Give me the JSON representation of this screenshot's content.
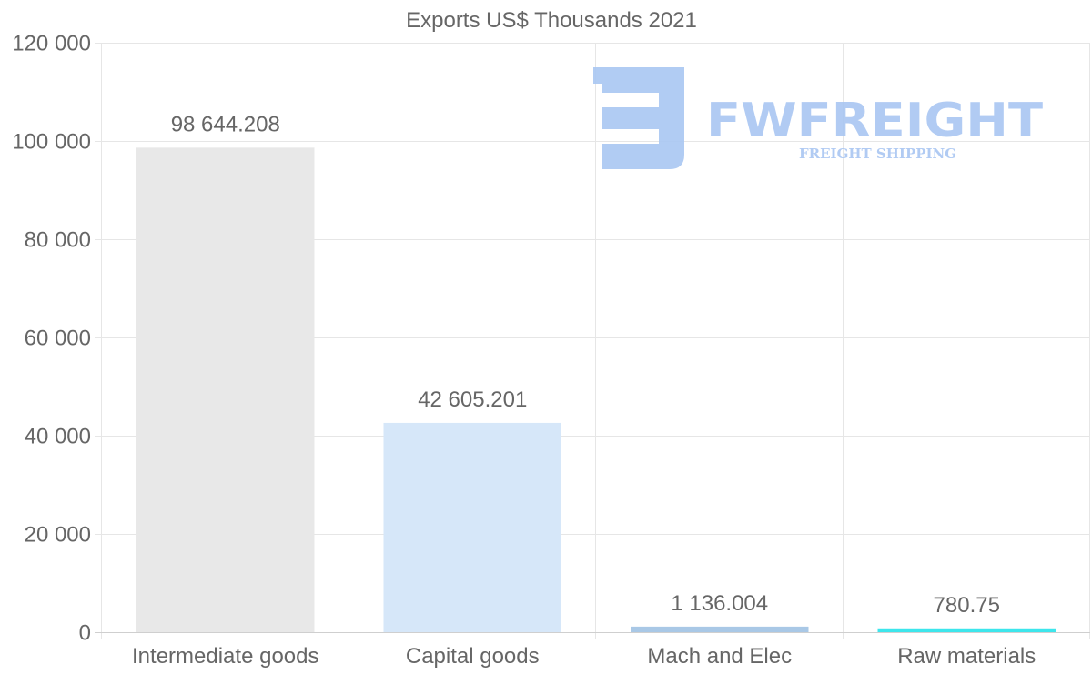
{
  "watermark": {
    "brand": "FWFREIGHT",
    "tagline": "FREIGHT SHIPPING"
  },
  "chart_data": {
    "type": "bar",
    "title": "Exports US$ Thousands 2021",
    "categories": [
      "Intermediate goods",
      "Capital goods",
      "Mach and Elec",
      "Raw materials"
    ],
    "values": [
      98644.208,
      42605.201,
      1136.004,
      780.75
    ],
    "data_labels": [
      "98 644.208",
      "42 605.201",
      "1 136.004",
      "780.75"
    ],
    "colors": [
      "#e8e8e8",
      "#d6e7f9",
      "#a9c8e6",
      "#3de6ec"
    ],
    "ylim": [
      0,
      120000
    ],
    "yticks": [
      0,
      20000,
      40000,
      60000,
      80000,
      100000,
      120000
    ],
    "ytick_labels": [
      "0",
      "20 000",
      "40 000",
      "60 000",
      "80 000",
      "100 000",
      "120 000"
    ],
    "xlabel": "",
    "ylabel": "",
    "grid": true,
    "legend": "none"
  }
}
